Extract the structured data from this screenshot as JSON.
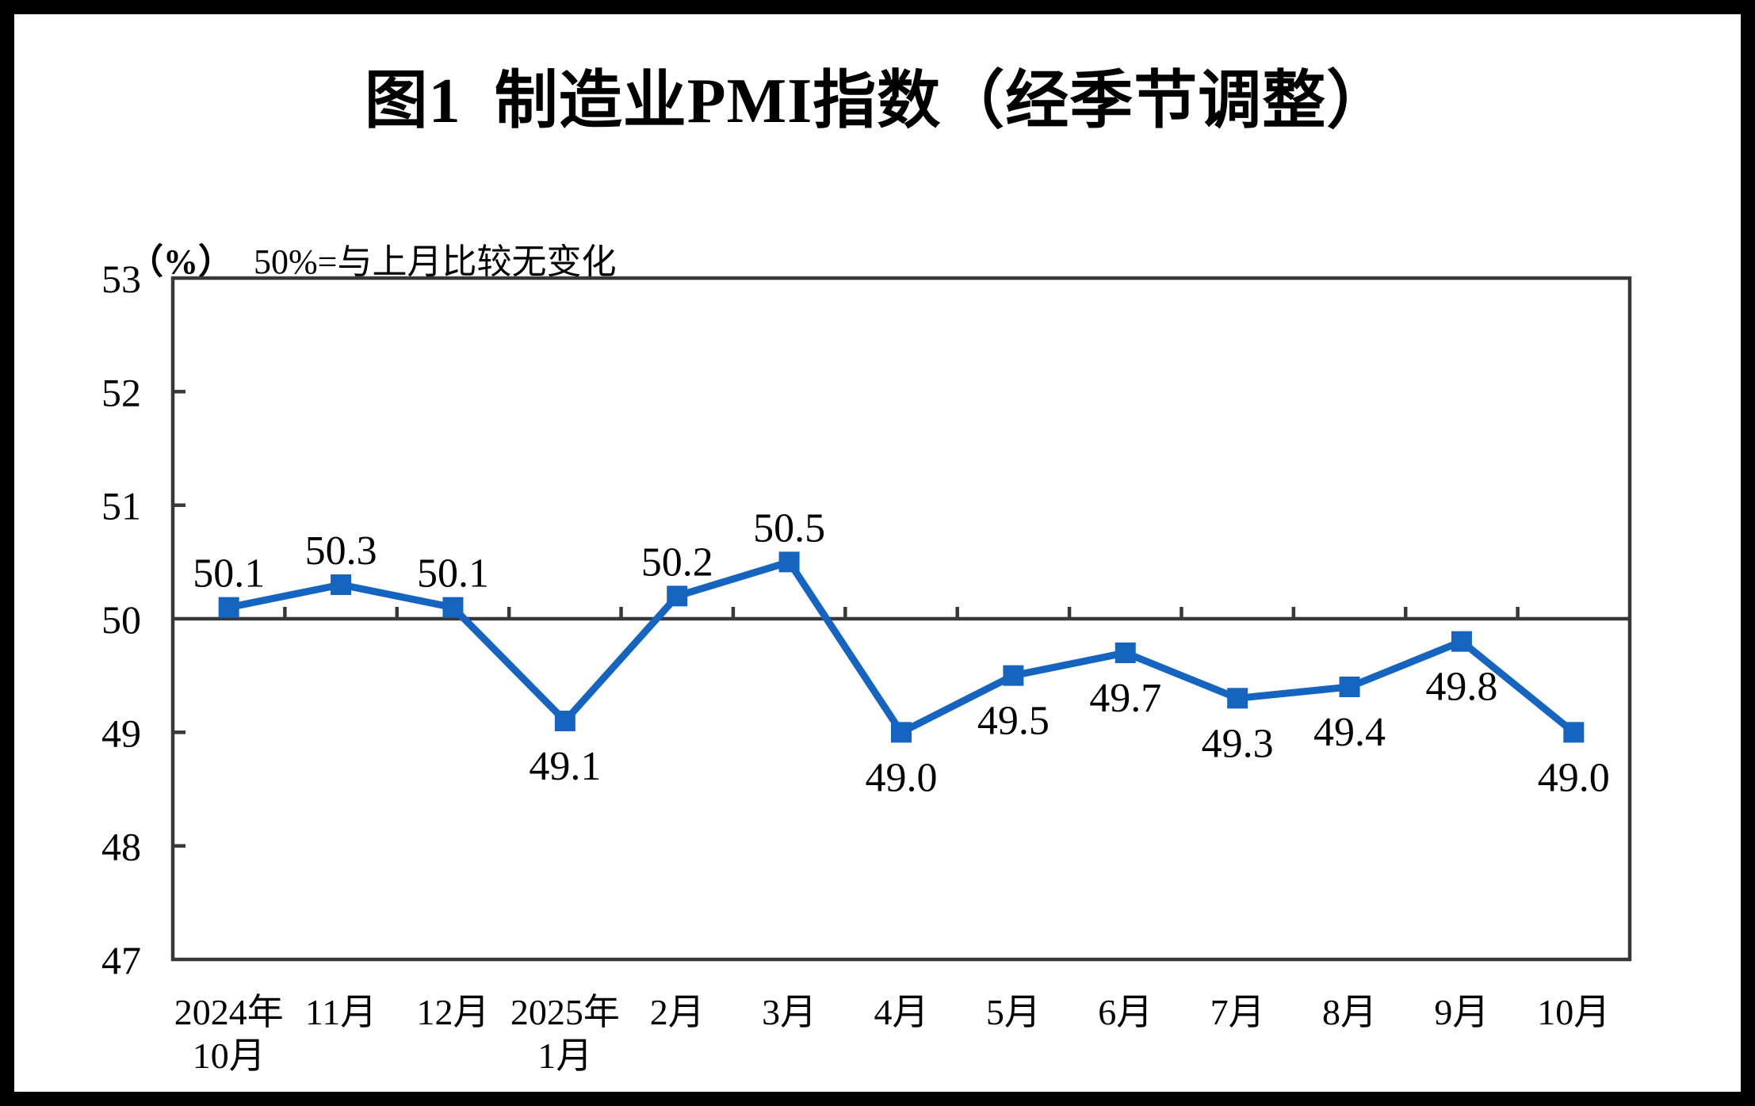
{
  "chart_data": {
    "type": "line",
    "title": "图1  制造业PMI指数（经季节调整）",
    "unit_note": "（%）",
    "subtitle": "50%=与上月比较无变化",
    "categories": [
      "2024年10月",
      "11月",
      "12月",
      "2025年1月",
      "2月",
      "3月",
      "4月",
      "5月",
      "6月",
      "7月",
      "8月",
      "9月",
      "10月"
    ],
    "x_tick_lines": [
      [
        "2024年",
        "10月"
      ],
      [
        "11月"
      ],
      [
        "12月"
      ],
      [
        "2025年",
        "1月"
      ],
      [
        "2月"
      ],
      [
        "3月"
      ],
      [
        "4月"
      ],
      [
        "5月"
      ],
      [
        "6月"
      ],
      [
        "7月"
      ],
      [
        "8月"
      ],
      [
        "9月"
      ],
      [
        "10月"
      ]
    ],
    "series": [
      {
        "name": "制造业PMI",
        "values": [
          50.1,
          50.3,
          50.1,
          49.1,
          50.2,
          50.5,
          49.0,
          49.5,
          49.7,
          49.3,
          49.4,
          49.8,
          49.0
        ]
      }
    ],
    "ylim": [
      47,
      53
    ],
    "yticks": [
      47,
      48,
      49,
      50,
      51,
      52,
      53
    ],
    "reference_line": 50,
    "grid": false,
    "legend": "none",
    "marker": "square",
    "colors": {
      "line": "#1565C0",
      "marker": "#1565C0",
      "axis": "#383838",
      "text": "#000000",
      "frame": "#000000",
      "background": "#FFFFFF"
    }
  }
}
